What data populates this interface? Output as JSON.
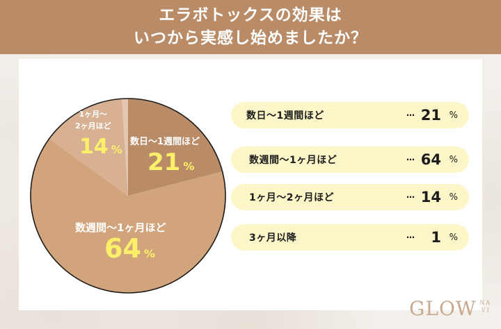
{
  "header": {
    "title_line1": "エラボトックスの効果は",
    "title_line2": "いつから実感し始めましたか？"
  },
  "chart_data": {
    "type": "pie",
    "title": "エラボトックスの効果はいつから実感し始めましたか？",
    "categories": [
      "数日〜1週間ほど",
      "数週間〜1ヶ月ほど",
      "1ヶ月〜2ヶ月ほど",
      "3ヶ月以降"
    ],
    "values": [
      21,
      64,
      14,
      1
    ],
    "unit": "%",
    "colors": [
      "#b98c67",
      "#d1a47c",
      "#d8b193",
      "#e3c7b0"
    ],
    "start_angle": "top",
    "direction": "clockwise",
    "legend_position": "right"
  },
  "pie": {
    "labels": [
      {
        "text": "数日〜1週間ほど",
        "value": "21",
        "unit": "%"
      },
      {
        "text": "数週間〜1ヶ月ほど",
        "value": "64",
        "unit": "%"
      },
      {
        "text_line1": "1ヶ月〜",
        "text_line2": "2ヶ月ほど",
        "value": "14",
        "unit": "%"
      }
    ]
  },
  "legend": {
    "items": [
      {
        "label": "数日〜1週間ほど",
        "dots": "…",
        "value": "21",
        "unit": "%"
      },
      {
        "label": "数週間〜1ヶ月ほど",
        "dots": "…",
        "value": "64",
        "unit": "%"
      },
      {
        "label": "1ヶ月〜2ヶ月ほど",
        "dots": "…",
        "value": "14",
        "unit": "%"
      },
      {
        "label": "3ヶ月以降",
        "dots": "…",
        "value": "1",
        "unit": "%"
      }
    ]
  },
  "logo": {
    "main": "GLOW",
    "sub_top": "NA",
    "sub_bottom": "VI"
  }
}
